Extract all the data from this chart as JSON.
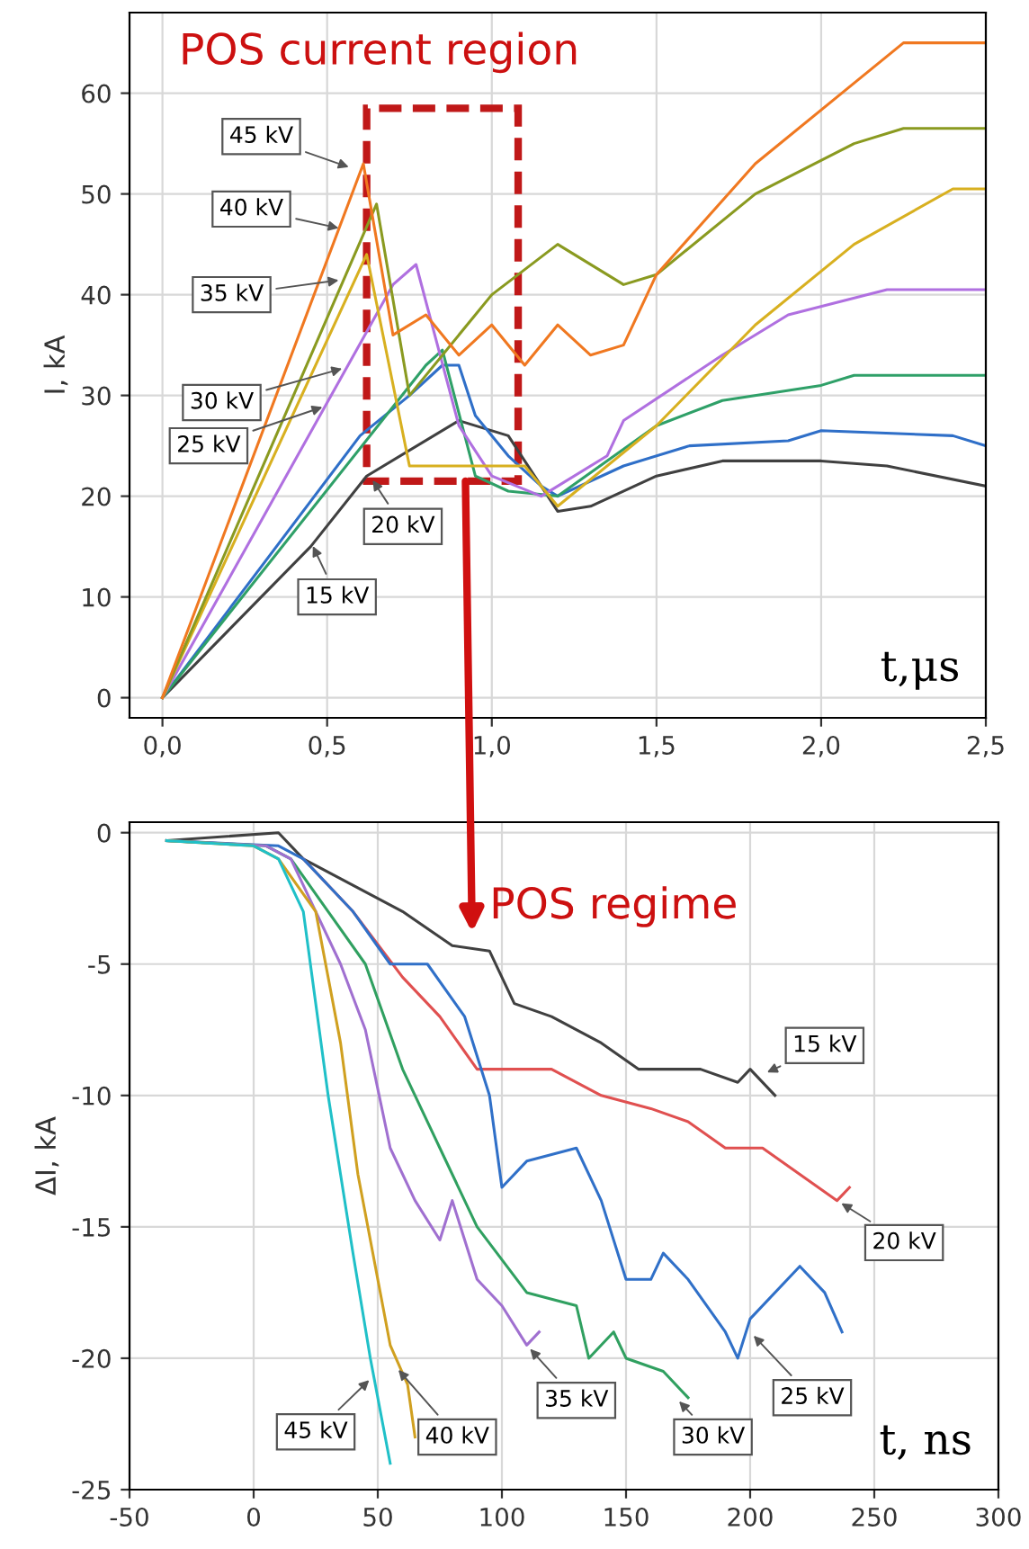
{
  "chart_data": [
    {
      "type": "line",
      "xlabel": "t,μs",
      "ylabel": "I, kA",
      "xlim": [
        -0.1,
        2.5
      ],
      "ylim": [
        -2,
        68
      ],
      "xticks": [
        {
          "value": 0,
          "label": "0,0"
        },
        {
          "value": 0.5,
          "label": "0,5"
        },
        {
          "value": 1,
          "label": "1,0"
        },
        {
          "value": 1.5,
          "label": "1,5"
        },
        {
          "value": 2,
          "label": "2,0"
        },
        {
          "value": 2.5,
          "label": "2,5"
        }
      ],
      "yticks": [
        0,
        10,
        20,
        30,
        40,
        50,
        60
      ],
      "grid": true,
      "legend": false,
      "marker": "none",
      "line_style": "solid",
      "series": [
        {
          "color": "#404040",
          "x": [
            0,
            0.45,
            0.62,
            0.9,
            1.05,
            1.15,
            1.2,
            1.3,
            1.5,
            1.7,
            2.0,
            2.2,
            2.5
          ],
          "values": [
            0,
            15,
            22,
            27.5,
            26,
            21,
            18.5,
            19,
            22,
            23.5,
            23.5,
            23,
            21
          ]
        },
        {
          "color": "#2f6fc8",
          "x": [
            0,
            0.6,
            0.75,
            0.85,
            0.9,
            0.95,
            1.05,
            1.15,
            1.2,
            1.4,
            1.6,
            1.9,
            2.0,
            2.4,
            2.5
          ],
          "values": [
            0,
            26,
            30,
            33,
            33,
            28,
            24,
            21,
            20,
            23,
            25,
            25.5,
            26.5,
            26,
            25
          ]
        },
        {
          "color": "#2fa068",
          "x": [
            0,
            0.8,
            0.85,
            0.95,
            1.05,
            1.2,
            1.5,
            1.7,
            2.0,
            2.1,
            2.5
          ],
          "values": [
            0,
            33,
            34.5,
            22,
            20.5,
            20,
            27,
            29.5,
            31,
            32,
            32
          ]
        },
        {
          "color": "#b070e0",
          "x": [
            0,
            0.7,
            0.77,
            0.9,
            1.0,
            1.15,
            1.35,
            1.4,
            1.7,
            1.9,
            2.2,
            2.5
          ],
          "values": [
            0,
            41,
            43,
            27,
            22,
            20,
            24,
            27.5,
            34,
            38,
            40.5,
            40.5
          ]
        },
        {
          "color": "#d8b020",
          "x": [
            0,
            0.62,
            0.75,
            0.9,
            1.1,
            1.2,
            1.5,
            1.8,
            2.1,
            2.4,
            2.5
          ],
          "values": [
            0,
            44,
            23,
            23,
            23,
            19,
            27,
            37,
            45,
            50.5,
            50.5
          ]
        },
        {
          "color": "#8a9a20",
          "x": [
            0,
            0.65,
            0.75,
            0.95,
            1.0,
            1.2,
            1.4,
            1.5,
            1.8,
            2.1,
            2.25,
            2.5
          ],
          "values": [
            0,
            49,
            30,
            38,
            40,
            45,
            41,
            42,
            50,
            55,
            56.5,
            56.5
          ]
        },
        {
          "color": "#f07820",
          "x": [
            0,
            0.61,
            0.7,
            0.8,
            0.9,
            1.0,
            1.1,
            1.2,
            1.3,
            1.4,
            1.5,
            1.8,
            2.1,
            2.25,
            2.5
          ],
          "values": [
            0,
            53,
            36,
            38,
            34,
            37,
            33,
            37,
            34,
            35,
            42,
            53,
            61,
            65,
            65
          ]
        }
      ],
      "annotations": [
        "POS current region",
        {
          "text": "45 kV",
          "x": 0.58,
          "y": 52.5
        },
        {
          "text": "40 kV",
          "x": 0.55,
          "y": 46.5
        },
        {
          "text": "35 kV",
          "x": 0.55,
          "y": 41.5
        },
        {
          "text": "30 kV",
          "x": 0.56,
          "y": 32.8
        },
        {
          "text": "25 kV",
          "x": 0.5,
          "y": 29
        },
        {
          "text": "20 kV",
          "x": 0.63,
          "y": 22
        },
        {
          "text": "15 kV",
          "x": 0.45,
          "y": 15.5
        }
      ]
    },
    {
      "type": "line",
      "xlabel": "t, ns",
      "ylabel": "ΔI, kA",
      "xlim": [
        -50,
        300
      ],
      "ylim": [
        -25,
        0.4
      ],
      "xticks": [
        -50,
        0,
        50,
        100,
        150,
        200,
        250,
        300
      ],
      "yticks": [
        {
          "value": -25,
          "label": "-25"
        },
        {
          "value": -20,
          "label": "-20"
        },
        {
          "value": -15,
          "label": "-15"
        },
        {
          "value": -10,
          "label": "-10"
        },
        {
          "value": -5,
          "label": "-5"
        },
        0
      ],
      "grid": true,
      "legend": false,
      "marker": "none",
      "line_style": "solid",
      "series": [
        {
          "color": "#404040",
          "x": [
            -35,
            10,
            20,
            40,
            60,
            80,
            95,
            105,
            120,
            140,
            155,
            180,
            195,
            200,
            210
          ],
          "values": [
            -0.3,
            0,
            -1,
            -2,
            -3,
            -4.3,
            -4.5,
            -6.5,
            -7,
            -8,
            -9,
            -9,
            -9.5,
            -9,
            -10
          ]
        },
        {
          "color": "#e05050",
          "x": [
            20,
            40,
            60,
            75,
            90,
            110,
            120,
            140,
            160,
            175,
            190,
            205,
            220,
            235,
            240
          ],
          "values": [
            -1,
            -3,
            -5.5,
            -7,
            -9,
            -9,
            -9,
            -10,
            -10.5,
            -11,
            -12,
            -12,
            -13,
            -14,
            -13.5
          ]
        },
        {
          "color": "#3070c8",
          "x": [
            -35,
            10,
            20,
            40,
            55,
            70,
            85,
            95,
            100,
            110,
            130,
            140,
            150,
            160,
            165,
            175,
            190,
            195,
            200,
            220,
            230,
            237
          ],
          "values": [
            -0.3,
            -0.5,
            -1,
            -3,
            -5,
            -5,
            -7,
            -10,
            -13.5,
            -12.5,
            -12,
            -14,
            -17,
            -17,
            -16,
            -17,
            -19,
            -20,
            -18.5,
            -16.5,
            -17.5,
            -19
          ]
        },
        {
          "color": "#30a060",
          "x": [
            -35,
            5,
            15,
            30,
            45,
            60,
            75,
            90,
            110,
            130,
            135,
            145,
            150,
            165,
            175
          ],
          "values": [
            -0.3,
            -0.5,
            -1,
            -3,
            -5,
            -9,
            -12,
            -15,
            -17.5,
            -18,
            -20,
            -19,
            -20,
            -20.5,
            -21.5
          ]
        },
        {
          "color": "#a070d0",
          "x": [
            -35,
            5,
            15,
            25,
            35,
            45,
            55,
            65,
            75,
            80,
            90,
            100,
            110,
            115
          ],
          "values": [
            -0.3,
            -0.5,
            -1,
            -3,
            -5,
            -7.5,
            -12,
            -14,
            -15.5,
            -14,
            -17,
            -18,
            -19.5,
            -19
          ]
        },
        {
          "color": "#d0a020",
          "x": [
            -35,
            0,
            10,
            25,
            35,
            42,
            50,
            55,
            62,
            65
          ],
          "values": [
            -0.3,
            -0.5,
            -1,
            -3,
            -8,
            -13,
            -17,
            -19.5,
            -21,
            -23
          ]
        },
        {
          "color": "#20c0c8",
          "x": [
            -35,
            0,
            10,
            20,
            30,
            35,
            40,
            47,
            52,
            55
          ],
          "values": [
            -0.3,
            -0.5,
            -1,
            -3,
            -10,
            -13,
            -16,
            -20,
            -22.5,
            -24
          ]
        }
      ],
      "annotations": [
        "POS regime",
        {
          "text": "15 kV",
          "x": 205,
          "y": -9.2
        },
        {
          "text": "20 kV",
          "x": 235,
          "y": -14
        },
        {
          "text": "25 kV",
          "x": 200,
          "y": -19
        },
        {
          "text": "30 kV",
          "x": 170,
          "y": -21.5
        },
        {
          "text": "35 kV",
          "x": 110,
          "y": -19.5
        },
        {
          "text": "40 kV",
          "x": 57,
          "y": -20.3
        },
        {
          "text": "45 kV",
          "x": 48,
          "y": -20.7
        }
      ]
    }
  ]
}
